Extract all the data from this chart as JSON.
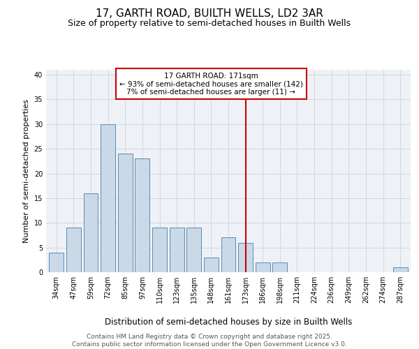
{
  "title": "17, GARTH ROAD, BUILTH WELLS, LD2 3AR",
  "subtitle": "Size of property relative to semi-detached houses in Builth Wells",
  "xlabel": "Distribution of semi-detached houses by size in Builth Wells",
  "ylabel": "Number of semi-detached properties",
  "bar_labels": [
    "34sqm",
    "47sqm",
    "59sqm",
    "72sqm",
    "85sqm",
    "97sqm",
    "110sqm",
    "123sqm",
    "135sqm",
    "148sqm",
    "161sqm",
    "173sqm",
    "186sqm",
    "198sqm",
    "211sqm",
    "224sqm",
    "236sqm",
    "249sqm",
    "262sqm",
    "274sqm",
    "287sqm"
  ],
  "bar_values": [
    4,
    9,
    16,
    30,
    24,
    23,
    9,
    9,
    9,
    3,
    7,
    6,
    2,
    2,
    0,
    0,
    0,
    0,
    0,
    0,
    1
  ],
  "bar_color": "#c9d9e8",
  "bar_edge_color": "#5b8ab5",
  "vline_index": 11,
  "vline_color": "#cc0000",
  "annotation_title": "17 GARTH ROAD: 171sqm",
  "annotation_line1": "← 93% of semi-detached houses are smaller (142)",
  "annotation_line2": "7% of semi-detached houses are larger (11) →",
  "annotation_box_edge": "#cc0000",
  "ylim": [
    0,
    41
  ],
  "yticks": [
    0,
    5,
    10,
    15,
    20,
    25,
    30,
    35,
    40
  ],
  "grid_color": "#d0d8e0",
  "background_color": "#eef2f7",
  "footer_line1": "Contains HM Land Registry data © Crown copyright and database right 2025.",
  "footer_line2": "Contains public sector information licensed under the Open Government Licence v3.0.",
  "title_fontsize": 11,
  "subtitle_fontsize": 9,
  "xlabel_fontsize": 8.5,
  "ylabel_fontsize": 8,
  "tick_fontsize": 7,
  "footer_fontsize": 6.5,
  "annotation_fontsize": 7.5
}
